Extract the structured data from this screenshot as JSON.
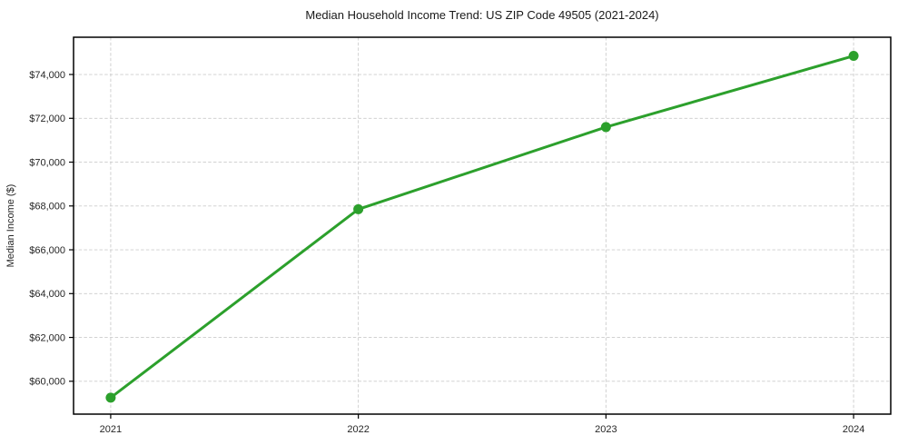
{
  "chart_data": {
    "type": "line",
    "title": "Median Household Income Trend: US ZIP Code 49505 (2021-2024)",
    "xlabel": "",
    "ylabel": "Median Income ($)",
    "x": [
      2021,
      2022,
      2023,
      2024
    ],
    "x_tick_labels": [
      "2021",
      "2022",
      "2023",
      "2024"
    ],
    "series": [
      {
        "name": "Median Household Income",
        "values": [
          59250,
          67850,
          71600,
          74850
        ]
      }
    ],
    "yticks": [
      60000,
      62000,
      64000,
      66000,
      68000,
      70000,
      72000,
      74000
    ],
    "ytick_labels": [
      "$60,000",
      "$62,000",
      "$64,000",
      "$66,000",
      "$68,000",
      "$70,000",
      "$72,000",
      "$74,000"
    ],
    "ylim": [
      58500,
      75700
    ],
    "xlim": [
      2020.85,
      2024.15
    ],
    "grid": true,
    "grid_style": "dashed",
    "legend": false,
    "colors": {
      "line": "#2ca02c",
      "marker": "#2ca02c",
      "grid": "#cccccc",
      "axis": "#000000",
      "text": "#262626"
    }
  }
}
